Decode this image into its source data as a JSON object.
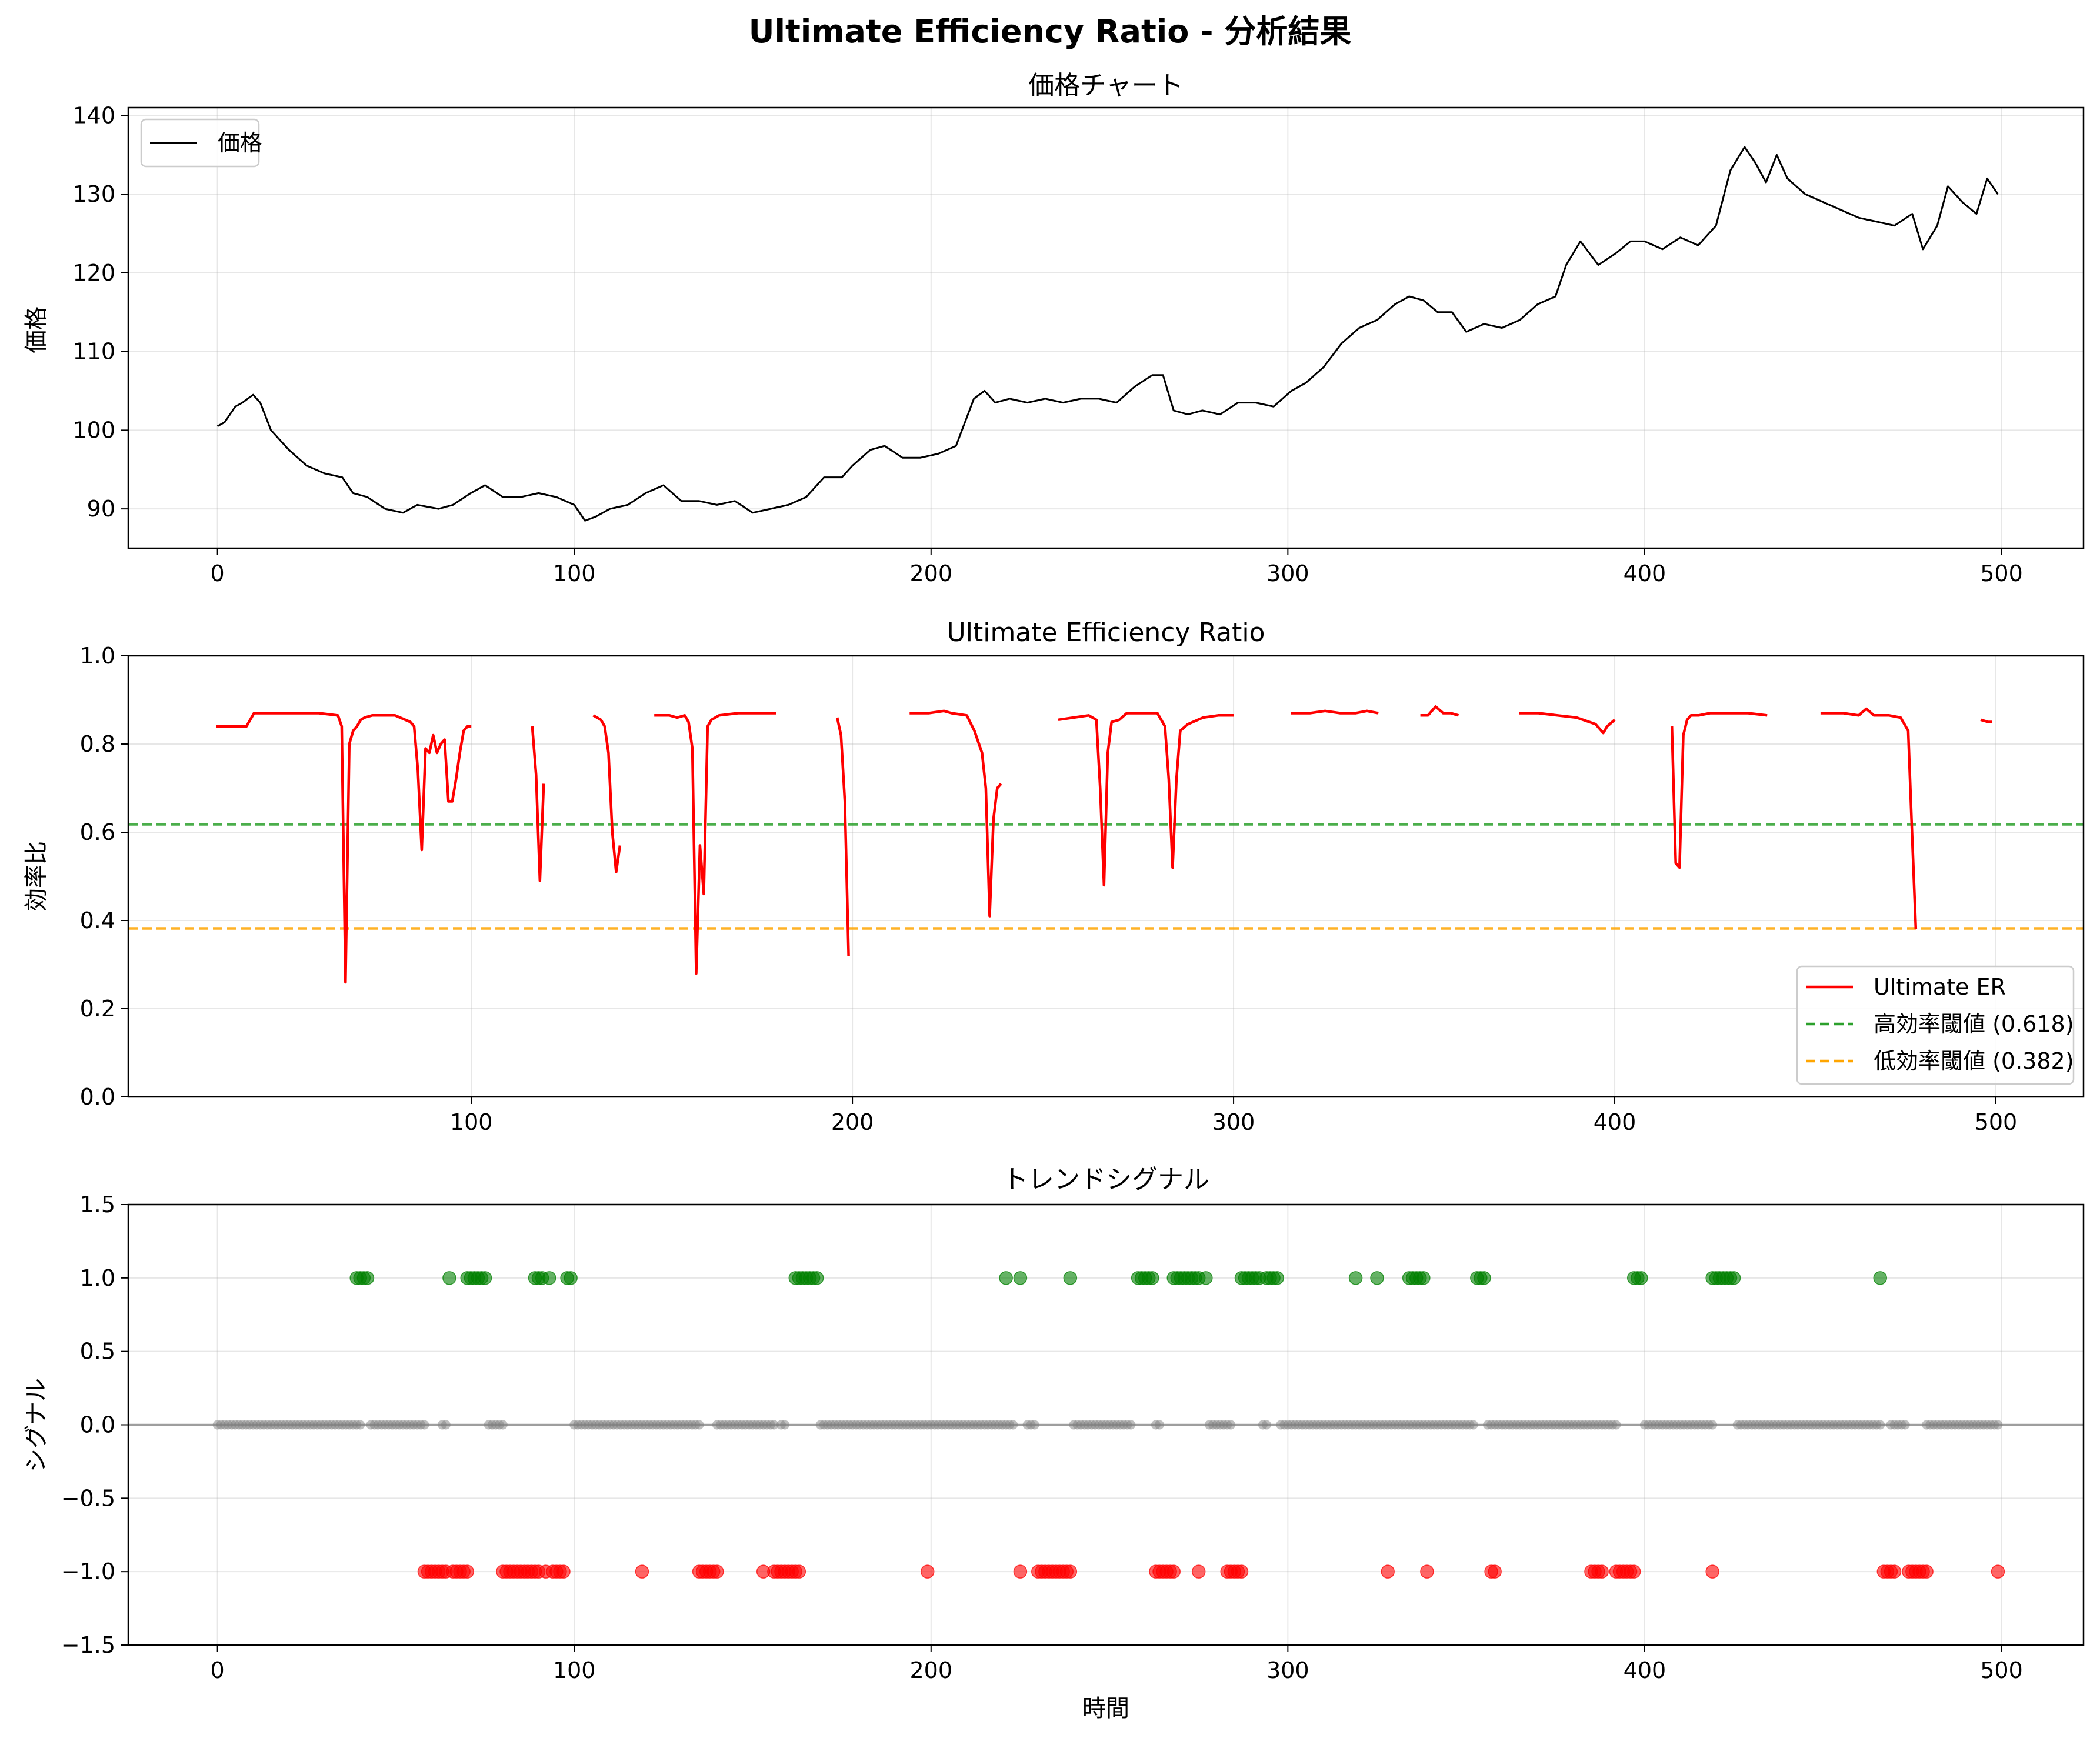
{
  "figure": {
    "title": "Ultimate Efficiency Ratio - 分析結果"
  },
  "colors": {
    "price": "#000000",
    "er": "#ff0000",
    "high_threshold": "#2ca02c",
    "low_threshold": "#ffa500",
    "signal_up": "#008000",
    "signal_down": "#ff0000",
    "signal_flat": "#808080"
  },
  "chart_data": [
    {
      "type": "line",
      "title": "価格チャート",
      "xlabel": "",
      "ylabel": "価格",
      "xlim": [
        -25,
        523
      ],
      "ylim": [
        85,
        141
      ],
      "xticks": [
        0,
        100,
        200,
        300,
        400,
        500
      ],
      "yticks": [
        90,
        100,
        110,
        120,
        130,
        140
      ],
      "grid": true,
      "legend": {
        "position": "top-left",
        "entries": [
          "価格"
        ]
      },
      "series": [
        {
          "name": "価格",
          "x": [
            0,
            2,
            5,
            7,
            10,
            12,
            15,
            20,
            25,
            30,
            35,
            38,
            42,
            47,
            52,
            56,
            62,
            66,
            71,
            75,
            80,
            85,
            90,
            95,
            100,
            103,
            106,
            110,
            115,
            120,
            125,
            130,
            135,
            140,
            145,
            150,
            155,
            160,
            165,
            170,
            175,
            178,
            183,
            187,
            192,
            197,
            202,
            207,
            212,
            215,
            218,
            222,
            227,
            232,
            237,
            242,
            247,
            252,
            257,
            262,
            265,
            268,
            272,
            276,
            281,
            286,
            291,
            296,
            301,
            305,
            310,
            315,
            320,
            325,
            330,
            334,
            338,
            342,
            346,
            350,
            355,
            360,
            365,
            370,
            375,
            378,
            382,
            387,
            392,
            396,
            400,
            405,
            410,
            415,
            420,
            424,
            428,
            431,
            434,
            437,
            440,
            445,
            450,
            455,
            460,
            465,
            470,
            475,
            478,
            482,
            485,
            489,
            493,
            496,
            499
          ],
          "y": [
            100.5,
            101,
            103,
            103.5,
            104.5,
            103.5,
            100,
            97.5,
            95.5,
            94.5,
            94,
            92,
            91.5,
            90,
            89.5,
            90.5,
            90,
            90.5,
            92,
            93,
            91.5,
            91.5,
            92,
            91.5,
            90.5,
            88.5,
            89,
            90,
            90.5,
            92,
            93,
            91,
            91,
            90.5,
            91,
            89.5,
            90,
            90.5,
            91.5,
            94,
            94,
            95.5,
            97.5,
            98,
            96.5,
            96.5,
            97,
            98,
            104,
            105,
            103.5,
            104,
            103.5,
            104,
            103.5,
            104,
            104,
            103.5,
            105.5,
            107,
            107,
            102.5,
            102,
            102.5,
            102,
            103.5,
            103.5,
            103,
            105,
            106,
            108,
            111,
            113,
            114,
            116,
            117,
            116.5,
            115,
            115,
            112.5,
            113.5,
            113,
            114,
            116,
            117,
            121,
            124,
            121,
            122.5,
            124,
            124,
            123,
            124.5,
            123.5,
            126,
            133,
            136,
            134,
            131.5,
            135,
            132,
            130,
            129,
            128,
            127,
            126.5,
            126,
            127.5,
            123,
            126,
            131,
            129,
            127.5,
            132,
            130
          ]
        }
      ]
    },
    {
      "type": "line",
      "title": "Ultimate Efficiency Ratio",
      "xlabel": "",
      "ylabel": "効率比",
      "xlim": [
        10,
        523
      ],
      "ylim": [
        0.0,
        1.0
      ],
      "xticks": [
        100,
        200,
        300,
        400,
        500
      ],
      "yticks": [
        0.0,
        0.2,
        0.4,
        0.6,
        0.8,
        1.0
      ],
      "grid": true,
      "legend": {
        "position": "bottom-right",
        "entries": [
          "Ultimate ER",
          "高効率閾値 (0.618)",
          "低効率閾値 (0.382)"
        ]
      },
      "series": [
        {
          "name": "Ultimate ER",
          "segments": [
            {
              "x": [
                33,
                36,
                39,
                41,
                43,
                45,
                50,
                55,
                60,
                65,
                66,
                67,
                68,
                69,
                70,
                71,
                72,
                74,
                76,
                80,
                84,
                85,
                86,
                87,
                88,
                89,
                90,
                91,
                92,
                93,
                94,
                95,
                96,
                97,
                98,
                99,
                100
              ],
              "y": [
                0.84,
                0.84,
                0.84,
                0.84,
                0.87,
                0.87,
                0.87,
                0.87,
                0.87,
                0.865,
                0.84,
                0.26,
                0.8,
                0.83,
                0.84,
                0.855,
                0.86,
                0.865,
                0.865,
                0.865,
                0.85,
                0.84,
                0.74,
                0.56,
                0.79,
                0.78,
                0.82,
                0.78,
                0.8,
                0.81,
                0.67,
                0.67,
                0.72,
                0.78,
                0.83,
                0.84,
                0.84
              ]
            },
            {
              "x": [
                116,
                117,
                118,
                119
              ],
              "y": [
                0.84,
                0.73,
                0.49,
                0.71
              ]
            },
            {
              "x": [
                132,
                134,
                135,
                136,
                137,
                138,
                139
              ],
              "y": [
                0.865,
                0.855,
                0.84,
                0.78,
                0.6,
                0.51,
                0.57
              ]
            },
            {
              "x": [
                148,
                152,
                154,
                156,
                157,
                158,
                159,
                160,
                161,
                162,
                163,
                165,
                170,
                175,
                180
              ],
              "y": [
                0.865,
                0.865,
                0.86,
                0.865,
                0.85,
                0.79,
                0.28,
                0.57,
                0.46,
                0.84,
                0.855,
                0.865,
                0.87,
                0.87,
                0.87
              ]
            },
            {
              "x": [
                196,
                197,
                198,
                199
              ],
              "y": [
                0.86,
                0.82,
                0.67,
                0.32
              ]
            },
            {
              "x": [
                215,
                220,
                224,
                226,
                230,
                232,
                234,
                235,
                236,
                237,
                238,
                239
              ],
              "y": [
                0.87,
                0.87,
                0.875,
                0.87,
                0.865,
                0.83,
                0.78,
                0.7,
                0.41,
                0.63,
                0.7,
                0.71
              ]
            },
            {
              "x": [
                254,
                258,
                262,
                264,
                265,
                266,
                267,
                268,
                270,
                272,
                275,
                280,
                282,
                283,
                284,
                285,
                286,
                288,
                292,
                296,
                300
              ],
              "y": [
                0.855,
                0.86,
                0.865,
                0.855,
                0.7,
                0.48,
                0.78,
                0.85,
                0.855,
                0.87,
                0.87,
                0.87,
                0.84,
                0.72,
                0.52,
                0.72,
                0.83,
                0.845,
                0.86,
                0.865,
                0.865
              ]
            },
            {
              "x": [
                315,
                320,
                324,
                328,
                332,
                335,
                338
              ],
              "y": [
                0.87,
                0.87,
                0.875,
                0.87,
                0.87,
                0.875,
                0.87
              ]
            },
            {
              "x": [
                349,
                351,
                353,
                355,
                357,
                359
              ],
              "y": [
                0.865,
                0.865,
                0.885,
                0.87,
                0.87,
                0.865
              ]
            },
            {
              "x": [
                375,
                380,
                385,
                390,
                395,
                397,
                398,
                400
              ],
              "y": [
                0.87,
                0.87,
                0.865,
                0.86,
                0.845,
                0.825,
                0.84,
                0.855
              ]
            },
            {
              "x": [
                415,
                416,
                417,
                418,
                419,
                420,
                422,
                425,
                430,
                435,
                440
              ],
              "y": [
                0.84,
                0.53,
                0.52,
                0.82,
                0.855,
                0.865,
                0.865,
                0.87,
                0.87,
                0.87,
                0.865
              ]
            },
            {
              "x": [
                454,
                460,
                464,
                466,
                468,
                472,
                475,
                476,
                477,
                478,
                479
              ],
              "y": [
                0.87,
                0.87,
                0.865,
                0.88,
                0.865,
                0.865,
                0.86,
                0.845,
                0.83,
                0.6,
                0.38
              ]
            },
            {
              "x": [
                496,
                498,
                499
              ],
              "y": [
                0.855,
                0.85,
                0.85
              ]
            }
          ]
        },
        {
          "name": "高効率閾値 (0.618)",
          "y": 0.618,
          "style": "dashed"
        },
        {
          "name": "低効率閾値 (0.382)",
          "y": 0.382,
          "style": "dashed"
        }
      ]
    },
    {
      "type": "scatter",
      "title": "トレンドシグナル",
      "xlabel": "時間",
      "ylabel": "シグナル",
      "xlim": [
        -25,
        523
      ],
      "ylim": [
        -1.5,
        1.5
      ],
      "xticks": [
        0,
        100,
        200,
        300,
        400,
        500
      ],
      "yticks": [
        -1.5,
        -1.0,
        -0.5,
        0.0,
        0.5,
        1.0,
        1.5
      ],
      "grid": true,
      "series": [
        {
          "signal": 1,
          "x": [
            39,
            40,
            41,
            42,
            65,
            70,
            71,
            72,
            73,
            74,
            75,
            89,
            90,
            91,
            93,
            98,
            99,
            162,
            163,
            164,
            165,
            166,
            167,
            168,
            221,
            225,
            239,
            258,
            259,
            260,
            261,
            262,
            268,
            269,
            270,
            271,
            272,
            273,
            274,
            275,
            277,
            287,
            288,
            289,
            290,
            291,
            292,
            294,
            295,
            296,
            297,
            319,
            325,
            334,
            335,
            336,
            337,
            338,
            353,
            354,
            355,
            397,
            398,
            399,
            419,
            420,
            421,
            422,
            423,
            424,
            425,
            466
          ]
        },
        {
          "signal": -1,
          "x": [
            58,
            59,
            60,
            61,
            62,
            63,
            64,
            66,
            67,
            68,
            69,
            70,
            80,
            81,
            82,
            83,
            84,
            85,
            86,
            87,
            88,
            89,
            90,
            92,
            94,
            95,
            96,
            97,
            119,
            135,
            136,
            137,
            138,
            139,
            140,
            153,
            156,
            157,
            158,
            159,
            160,
            161,
            162,
            163,
            199,
            225,
            230,
            231,
            232,
            233,
            234,
            235,
            236,
            237,
            238,
            239,
            263,
            264,
            265,
            266,
            267,
            268,
            275,
            283,
            284,
            285,
            286,
            287,
            328,
            339,
            357,
            358,
            385,
            386,
            387,
            388,
            392,
            393,
            394,
            395,
            396,
            397,
            419,
            467,
            468,
            469,
            470,
            474,
            475,
            476,
            477,
            478,
            479,
            499
          ]
        },
        {
          "signal": 0,
          "ranges": [
            [
              0,
              40
            ],
            [
              43,
              58
            ],
            [
              63,
              64
            ],
            [
              76,
              80
            ],
            [
              100,
              128
            ],
            [
              129,
              135
            ],
            [
              140,
              156
            ],
            [
              158,
              159
            ],
            [
              169,
              223
            ],
            [
              227,
              229
            ],
            [
              240,
              256
            ],
            [
              263,
              264
            ],
            [
              278,
              284
            ],
            [
              293,
              294
            ],
            [
              298,
              352
            ],
            [
              356,
              392
            ],
            [
              400,
              419
            ],
            [
              426,
              466
            ],
            [
              469,
              473
            ],
            [
              479,
              499
            ]
          ]
        }
      ]
    }
  ]
}
